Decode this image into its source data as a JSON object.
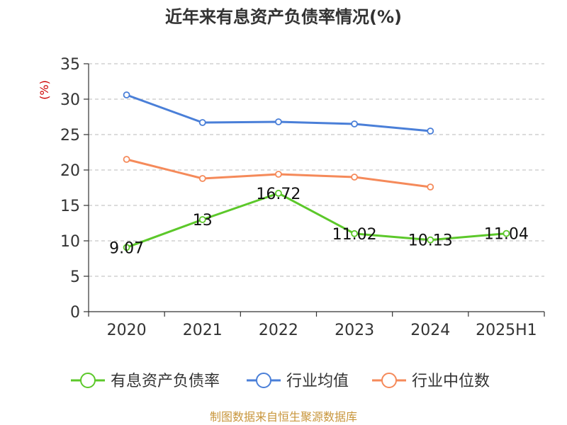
{
  "chart_data": {
    "type": "line",
    "title": "近年来有息资产负债率情况(%)",
    "ylabel": "(%)",
    "categories": [
      "2020",
      "2021",
      "2022",
      "2023",
      "2024",
      "2025H1"
    ],
    "ylim": [
      0,
      35
    ],
    "yticks": [
      0,
      5,
      10,
      15,
      20,
      25,
      30,
      35
    ],
    "grid": true,
    "legend_position": "bottom",
    "series": [
      {
        "name": "有息资产负债率",
        "color": "#5cc82a",
        "values": [
          9.07,
          13,
          16.72,
          11.02,
          10.13,
          11.04
        ],
        "labels": [
          "9.07",
          "13",
          "16.72",
          "11.02",
          "10.13",
          "11.04"
        ]
      },
      {
        "name": "行业均值",
        "color": "#4a7fd8",
        "values": [
          30.6,
          26.7,
          26.8,
          26.5,
          25.5,
          null
        ]
      },
      {
        "name": "行业中位数",
        "color": "#f58a5a",
        "values": [
          21.5,
          18.8,
          19.4,
          19.0,
          17.6,
          null
        ]
      }
    ]
  },
  "source": "制图数据来自恒生聚源数据库"
}
